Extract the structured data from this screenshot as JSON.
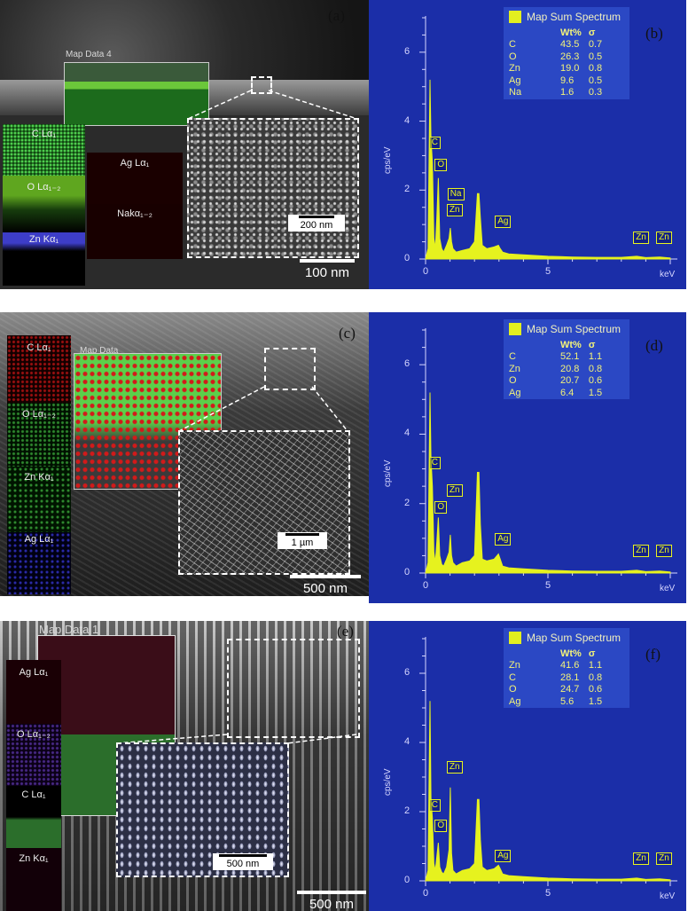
{
  "panels": {
    "a": {
      "label": "(a)",
      "map_title": "Map Data 4",
      "maps": {
        "c": "C Lα₁",
        "o": "O Lα₁₋₂",
        "zn": "Zn Kα₁",
        "ag": "Ag Lα₁",
        "na": "Nakα₁₋₂"
      },
      "inset_scale": "200 nm",
      "scale": "100 nm"
    },
    "c": {
      "label": "(c)",
      "map_title": "Map Data",
      "maps": {
        "c": "C Lα₁",
        "o": "O Lα₁₋₂",
        "zn": "Zn Kα₁",
        "ag": "Ag Lα₁"
      },
      "inset_scale": "1 µm",
      "scale": "500 nm"
    },
    "e": {
      "label": "(e)",
      "map_title": "Map Data 1",
      "maps": {
        "ag": "Ag Lα₁",
        "o": "O Lα₁₋₂",
        "c": "C Lα₁",
        "zn": "Zn Kα₁"
      },
      "inset_scale": "500 nm",
      "scale": "500 nm"
    }
  },
  "chart_data": [
    {
      "type": "table",
      "panel": "(b)",
      "title": "Map Sum Spectrum",
      "ylabel": "cps/eV",
      "xlabel": "keV",
      "xlim": [
        0,
        10
      ],
      "ylim": [
        0,
        7
      ],
      "xticks": [
        "0",
        "5"
      ],
      "yticks": [
        "0",
        "2",
        "4",
        "6"
      ],
      "columns": [
        "",
        "Wt%",
        "σ"
      ],
      "rows": [
        [
          "C",
          "43.5",
          "0.7"
        ],
        [
          "O",
          "26.3",
          "0.5"
        ],
        [
          "Zn",
          "19.0",
          "0.8"
        ],
        [
          "Ag",
          "9.6",
          "0.5"
        ],
        [
          "Na",
          "1.6",
          "0.3"
        ]
      ],
      "peaks": [
        {
          "label": "C",
          "x": 0.28,
          "y": 3.2
        },
        {
          "label": "O",
          "x": 0.52,
          "y": 2.55
        },
        {
          "label": "Na",
          "x": 1.04,
          "y": 1.7
        },
        {
          "label": "Zn",
          "x": 1.01,
          "y": 1.35
        },
        {
          "label": "Ag",
          "x": 2.98,
          "y": 0.9
        },
        {
          "label": "Zn",
          "x": 8.63,
          "y": 0.45
        },
        {
          "label": "Zn",
          "x": 9.57,
          "y": 0.45
        }
      ],
      "spectrum": {
        "x": [
          0,
          0.1,
          0.18,
          0.22,
          0.28,
          0.34,
          0.4,
          0.46,
          0.52,
          0.58,
          0.66,
          0.74,
          0.86,
          0.96,
          1.01,
          1.06,
          1.12,
          1.25,
          1.5,
          1.8,
          2.0,
          2.12,
          2.18,
          2.24,
          2.32,
          2.5,
          2.8,
          2.98,
          3.05,
          3.15,
          3.4,
          4,
          5,
          6,
          7,
          8,
          8.63,
          9,
          9.57,
          10
        ],
        "y": [
          0,
          0.3,
          5.2,
          3.5,
          2.8,
          0.6,
          0.3,
          1.2,
          2.35,
          0.6,
          0.3,
          0.2,
          0.4,
          0.6,
          0.9,
          0.5,
          0.3,
          0.2,
          0.25,
          0.3,
          0.5,
          1.9,
          1.9,
          1.2,
          0.4,
          0.3,
          0.35,
          0.4,
          0.3,
          0.2,
          0.15,
          0.12,
          0.08,
          0.06,
          0.05,
          0.05,
          0.08,
          0.04,
          0.06,
          0.03
        ]
      }
    },
    {
      "type": "table",
      "panel": "(d)",
      "title": "Map Sum Spectrum",
      "ylabel": "cps/eV",
      "xlabel": "keV",
      "xlim": [
        0,
        10
      ],
      "ylim": [
        0,
        7
      ],
      "xticks": [
        "0",
        "5"
      ],
      "yticks": [
        "0",
        "2",
        "4",
        "6"
      ],
      "columns": [
        "",
        "Wt%",
        "σ"
      ],
      "rows": [
        [
          "C",
          "52.1",
          "1.1"
        ],
        [
          "Zn",
          "20.8",
          "0.8"
        ],
        [
          "O",
          "20.7",
          "0.6"
        ],
        [
          "Ag",
          "6.4",
          "1.5"
        ]
      ],
      "peaks": [
        {
          "label": "C",
          "x": 0.28,
          "y": 3.0
        },
        {
          "label": "O",
          "x": 0.52,
          "y": 1.7
        },
        {
          "label": "Zn",
          "x": 1.01,
          "y": 2.2
        },
        {
          "label": "Ag",
          "x": 2.98,
          "y": 0.8
        },
        {
          "label": "Zn",
          "x": 8.63,
          "y": 0.45
        },
        {
          "label": "Zn",
          "x": 9.57,
          "y": 0.45
        }
      ],
      "spectrum": {
        "x": [
          0,
          0.1,
          0.18,
          0.22,
          0.28,
          0.34,
          0.4,
          0.46,
          0.52,
          0.58,
          0.66,
          0.74,
          0.86,
          0.96,
          1.01,
          1.06,
          1.12,
          1.25,
          1.5,
          1.8,
          2.0,
          2.12,
          2.18,
          2.24,
          2.32,
          2.5,
          2.8,
          2.98,
          3.05,
          3.15,
          3.4,
          4,
          5,
          6,
          7,
          8,
          8.63,
          9,
          9.57,
          10
        ],
        "y": [
          0,
          0.3,
          5.2,
          3.3,
          2.5,
          0.6,
          0.3,
          0.9,
          1.6,
          0.5,
          0.25,
          0.2,
          0.4,
          0.6,
          1.1,
          0.5,
          0.3,
          0.2,
          0.3,
          0.35,
          0.5,
          2.9,
          2.9,
          1.4,
          0.4,
          0.35,
          0.4,
          0.55,
          0.4,
          0.2,
          0.15,
          0.12,
          0.08,
          0.06,
          0.05,
          0.05,
          0.08,
          0.04,
          0.06,
          0.03
        ]
      }
    },
    {
      "type": "table",
      "panel": "(f)",
      "title": "Map Sum Spectrum",
      "ylabel": "cps/eV",
      "xlabel": "keV",
      "xlim": [
        0,
        10
      ],
      "ylim": [
        0,
        7
      ],
      "xticks": [
        "0",
        "5"
      ],
      "yticks": [
        "0",
        "2",
        "4",
        "6"
      ],
      "columns": [
        "",
        "Wt%",
        "σ"
      ],
      "rows": [
        [
          "Zn",
          "41.6",
          "1.1"
        ],
        [
          "C",
          "28.1",
          "0.8"
        ],
        [
          "O",
          "24.7",
          "0.6"
        ],
        [
          "Ag",
          "5.6",
          "1.5"
        ]
      ],
      "peaks": [
        {
          "label": "C",
          "x": 0.28,
          "y": 2.0
        },
        {
          "label": "O",
          "x": 0.52,
          "y": 1.4
        },
        {
          "label": "Zn",
          "x": 1.01,
          "y": 3.1
        },
        {
          "label": "Ag",
          "x": 2.98,
          "y": 0.55
        },
        {
          "label": "Zn",
          "x": 8.63,
          "y": 0.45
        },
        {
          "label": "Zn",
          "x": 9.57,
          "y": 0.45
        }
      ],
      "spectrum": {
        "x": [
          0,
          0.1,
          0.18,
          0.22,
          0.28,
          0.34,
          0.4,
          0.46,
          0.52,
          0.58,
          0.66,
          0.74,
          0.86,
          0.96,
          1.01,
          1.06,
          1.12,
          1.25,
          1.5,
          1.8,
          2.0,
          2.12,
          2.18,
          2.24,
          2.32,
          2.5,
          2.8,
          2.98,
          3.05,
          3.15,
          3.4,
          4,
          5,
          6,
          7,
          8,
          8.63,
          9,
          9.57,
          10
        ],
        "y": [
          0,
          0.3,
          5.2,
          2.4,
          1.8,
          0.5,
          0.3,
          0.7,
          1.1,
          0.4,
          0.25,
          0.2,
          0.4,
          0.9,
          2.7,
          0.8,
          0.3,
          0.2,
          0.3,
          0.35,
          0.5,
          2.35,
          2.35,
          1.2,
          0.4,
          0.3,
          0.35,
          0.45,
          0.35,
          0.2,
          0.15,
          0.12,
          0.08,
          0.06,
          0.05,
          0.05,
          0.08,
          0.04,
          0.06,
          0.03
        ]
      }
    }
  ]
}
